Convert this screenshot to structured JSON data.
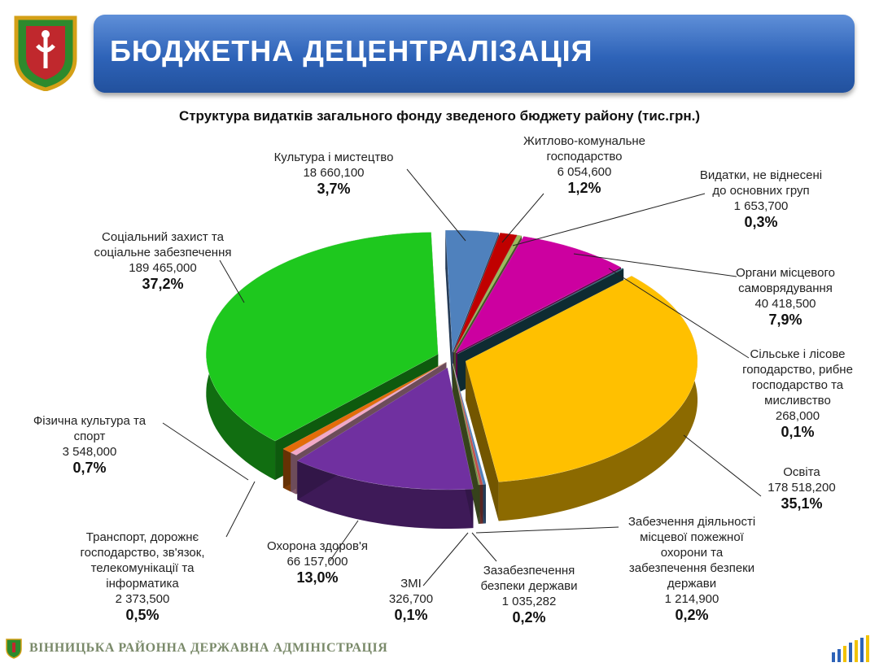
{
  "header": {
    "title": "БЮДЖЕТНА ДЕЦЕНТРАЛІЗАЦІЯ"
  },
  "footer": {
    "org": "ВІННИЦЬКА РАЙОННА ДЕРЖАВНА АДМІНІСТРАЦІЯ"
  },
  "chart_data": {
    "type": "pie",
    "title": "Структура видатків загального фонду зведеного бюджету району (тис.грн.)",
    "slices": [
      {
        "lines": [
          "Культура і мистецтво"
        ],
        "value": "18 660,100",
        "pct": "3,7%",
        "percent": 3.7,
        "color": "#4f81bd"
      },
      {
        "lines": [
          "Житлово-комунальне",
          "господарство"
        ],
        "value": "6 054,600",
        "pct": "1,2%",
        "percent": 1.2,
        "color": "#c00000"
      },
      {
        "lines": [
          "Видатки, не віднесені",
          "до основних груп"
        ],
        "value": "1 653,700",
        "pct": "0,3%",
        "percent": 0.3,
        "color": "#9bbb59"
      },
      {
        "lines": [
          "Органи місцевого",
          "самоврядування"
        ],
        "value": "40 418,500",
        "pct": "7,9%",
        "percent": 7.9,
        "color": "#cc00a0"
      },
      {
        "lines": [
          "Сільське і лісове",
          "гоподарство, рибне",
          "господарство та",
          "мисливство"
        ],
        "value": "268,000",
        "pct": "0,1%",
        "percent": 0.1,
        "color": "#1f5f6f"
      },
      {
        "lines": [
          "Освіта"
        ],
        "value": "178 518,200",
        "pct": "35,1%",
        "percent": 35.1,
        "color": "#ffc000"
      },
      {
        "lines": [
          "Забезчення діяльності",
          "місцевої пожежної",
          "охорони та",
          "забезпечення безпеки",
          "держави"
        ],
        "value": "1 214,900",
        "pct": "0,2%",
        "percent": 0.2,
        "color": "#4f81bd"
      },
      {
        "lines": [
          "Зазабезпечення",
          "безпеки держави"
        ],
        "value": "1 035,282",
        "pct": "0,2%",
        "percent": 0.2,
        "color": "#c0504d"
      },
      {
        "lines": [
          "ЗМІ"
        ],
        "value": "326,700",
        "pct": "0,1%",
        "percent": 0.1,
        "color": "#77933c"
      },
      {
        "lines": [
          "Охорона здоров'я"
        ],
        "value": "66 157,000",
        "pct": "13,0%",
        "percent": 13.0,
        "color": "#7030a0"
      },
      {
        "lines": [
          "Транспорт, дорожнє",
          "господарство, зв'язок,",
          "телекомунікації та",
          "інформатика"
        ],
        "value": "2 373,500",
        "pct": "0,5%",
        "percent": 0.5,
        "color": "#f2a8c8"
      },
      {
        "lines": [
          "Фізична культура та",
          "спорт"
        ],
        "value": "3 548,000",
        "pct": "0,7%",
        "percent": 0.7,
        "color": "#e36c09"
      },
      {
        "lines": [
          "Соціальний захист та",
          "соціальне забезпечення"
        ],
        "value": "189 465,000",
        "pct": "37,2%",
        "percent": 37.2,
        "color": "#1ec81e"
      }
    ]
  }
}
